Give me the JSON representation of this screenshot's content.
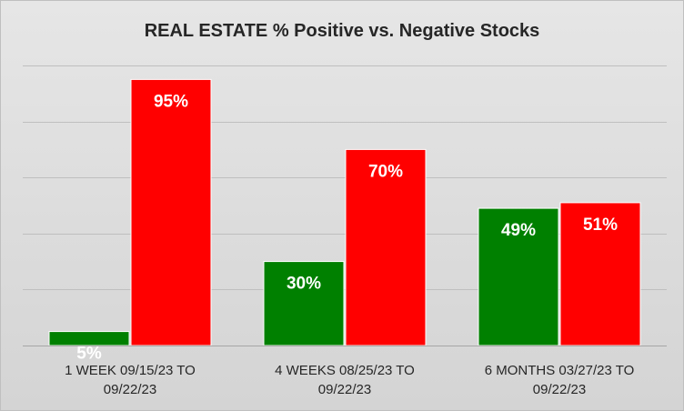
{
  "chart_data": {
    "type": "bar",
    "title": "REAL ESTATE % Positive vs. Negative Stocks",
    "categories": [
      [
        "1 WEEK 09/15/23 TO",
        "09/22/23"
      ],
      [
        "4 WEEKS 08/25/23 TO",
        "09/22/23"
      ],
      [
        "6 MONTHS 03/27/23 TO",
        "09/22/23"
      ]
    ],
    "series": [
      {
        "values": [
          5,
          30,
          49
        ],
        "data_labels": [
          "5%",
          "30%",
          "49%"
        ],
        "color": "#008000"
      },
      {
        "values": [
          95,
          70,
          51
        ],
        "data_labels": [
          "95%",
          "70%",
          "51%"
        ],
        "color": "#ff0000"
      }
    ],
    "ylim": [
      0,
      100
    ],
    "grid": true,
    "legend": "none",
    "background": "#d9d9d9",
    "gridline_color": "#bfbfbf"
  }
}
